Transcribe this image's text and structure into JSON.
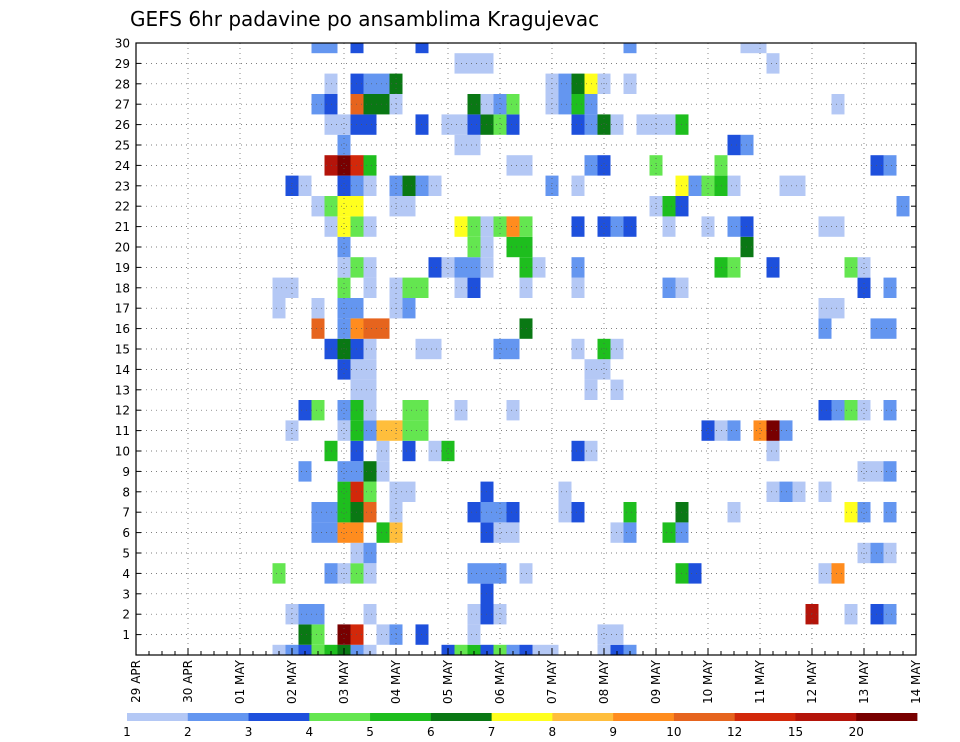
{
  "chart_data": {
    "type": "heatmap",
    "title": "GEFS 6hr padavine po ansamblima Kragujevac",
    "xlabel": "",
    "ylabel": "",
    "x_tick_labels": [
      "29 APR",
      "30 APR",
      "01 MAY",
      "02 MAY",
      "03 MAY",
      "04 MAY",
      "05 MAY",
      "06 MAY",
      "07 MAY",
      "08 MAY",
      "09 MAY",
      "10 MAY",
      "11 MAY",
      "12 MAY",
      "13 MAY",
      "14 MAY"
    ],
    "y_tick_labels": [
      "1",
      "2",
      "3",
      "4",
      "5",
      "6",
      "7",
      "8",
      "9",
      "10",
      "11",
      "12",
      "13",
      "14",
      "15",
      "16",
      "17",
      "18",
      "19",
      "20",
      "21",
      "22",
      "23",
      "24",
      "25",
      "26",
      "27",
      "28",
      "29",
      "30"
    ],
    "time_steps": 61,
    "ylim": [
      0,
      30
    ],
    "grid": true,
    "legend_position": "bottom",
    "colorbar": {
      "labels": [
        "1",
        "2",
        "3",
        "4",
        "5",
        "6",
        "7",
        "8",
        "9",
        "10",
        "12",
        "15",
        "20"
      ],
      "colors": [
        "#b4c8f5",
        "#6496f0",
        "#1e50dc",
        "#64e650",
        "#1ebe1e",
        "#0a7814",
        "#ffff1e",
        "#ffbe3c",
        "#ff8c1e",
        "#e6641e",
        "#d2280a",
        "#b4140a",
        "#780000"
      ]
    },
    "cells": [
      [
        0,
        11,
        0
      ],
      [
        0,
        12,
        1
      ],
      [
        0,
        13,
        2
      ],
      [
        0,
        14,
        3
      ],
      [
        0,
        15,
        4
      ],
      [
        0,
        16,
        5
      ],
      [
        0,
        17,
        1
      ],
      [
        0,
        18,
        0
      ],
      [
        0,
        24,
        2
      ],
      [
        0,
        25,
        3
      ],
      [
        0,
        26,
        4
      ],
      [
        0,
        27,
        2
      ],
      [
        0,
        28,
        3
      ],
      [
        0,
        29,
        1
      ],
      [
        0,
        30,
        2
      ],
      [
        0,
        31,
        0
      ],
      [
        0,
        32,
        0
      ],
      [
        0,
        36,
        0
      ],
      [
        0,
        37,
        2
      ],
      [
        0,
        38,
        1
      ],
      [
        1,
        13,
        5
      ],
      [
        1,
        14,
        3
      ],
      [
        1,
        16,
        12
      ],
      [
        1,
        17,
        10
      ],
      [
        1,
        19,
        0
      ],
      [
        1,
        20,
        1
      ],
      [
        1,
        22,
        2
      ],
      [
        1,
        26,
        0
      ],
      [
        1,
        36,
        0
      ],
      [
        1,
        37,
        0
      ],
      [
        2,
        12,
        0
      ],
      [
        2,
        13,
        1
      ],
      [
        2,
        14,
        1
      ],
      [
        2,
        18,
        0
      ],
      [
        2,
        26,
        0
      ],
      [
        2,
        27,
        2
      ],
      [
        2,
        28,
        0
      ],
      [
        2,
        52,
        11
      ],
      [
        2,
        55,
        0
      ],
      [
        2,
        57,
        2
      ],
      [
        2,
        58,
        1
      ],
      [
        3,
        27,
        2
      ],
      [
        4,
        11,
        3
      ],
      [
        4,
        15,
        1
      ],
      [
        4,
        16,
        0
      ],
      [
        4,
        17,
        3
      ],
      [
        4,
        18,
        0
      ],
      [
        4,
        26,
        1
      ],
      [
        4,
        27,
        1
      ],
      [
        4,
        28,
        1
      ],
      [
        4,
        30,
        0
      ],
      [
        4,
        42,
        4
      ],
      [
        4,
        43,
        2
      ],
      [
        4,
        53,
        0
      ],
      [
        4,
        54,
        8
      ],
      [
        5,
        17,
        0
      ],
      [
        5,
        18,
        1
      ],
      [
        5,
        56,
        0
      ],
      [
        5,
        57,
        1
      ],
      [
        5,
        58,
        0
      ],
      [
        6,
        14,
        1
      ],
      [
        6,
        15,
        1
      ],
      [
        6,
        16,
        8
      ],
      [
        6,
        17,
        8
      ],
      [
        6,
        19,
        4
      ],
      [
        6,
        20,
        7
      ],
      [
        6,
        27,
        2
      ],
      [
        6,
        28,
        0
      ],
      [
        6,
        29,
        0
      ],
      [
        6,
        37,
        0
      ],
      [
        6,
        38,
        1
      ],
      [
        6,
        41,
        4
      ],
      [
        6,
        42,
        1
      ],
      [
        7,
        14,
        1
      ],
      [
        7,
        15,
        1
      ],
      [
        7,
        16,
        4
      ],
      [
        7,
        17,
        5
      ],
      [
        7,
        18,
        9
      ],
      [
        7,
        20,
        0
      ],
      [
        7,
        26,
        2
      ],
      [
        7,
        27,
        1
      ],
      [
        7,
        28,
        1
      ],
      [
        7,
        29,
        2
      ],
      [
        7,
        33,
        0
      ],
      [
        7,
        34,
        2
      ],
      [
        7,
        38,
        4
      ],
      [
        7,
        42,
        5
      ],
      [
        7,
        46,
        0
      ],
      [
        7,
        55,
        6
      ],
      [
        7,
        56,
        1
      ],
      [
        7,
        58,
        1
      ],
      [
        8,
        16,
        4
      ],
      [
        8,
        17,
        10
      ],
      [
        8,
        18,
        3
      ],
      [
        8,
        20,
        0
      ],
      [
        8,
        21,
        0
      ],
      [
        8,
        27,
        2
      ],
      [
        8,
        33,
        0
      ],
      [
        8,
        49,
        0
      ],
      [
        8,
        50,
        1
      ],
      [
        8,
        51,
        0
      ],
      [
        8,
        53,
        0
      ],
      [
        9,
        13,
        1
      ],
      [
        9,
        16,
        1
      ],
      [
        9,
        17,
        1
      ],
      [
        9,
        18,
        5
      ],
      [
        9,
        19,
        0
      ],
      [
        9,
        56,
        0
      ],
      [
        9,
        57,
        0
      ],
      [
        9,
        58,
        1
      ],
      [
        10,
        15,
        4
      ],
      [
        10,
        17,
        2
      ],
      [
        10,
        19,
        0
      ],
      [
        10,
        21,
        2
      ],
      [
        10,
        23,
        0
      ],
      [
        10,
        24,
        4
      ],
      [
        10,
        34,
        2
      ],
      [
        10,
        35,
        0
      ],
      [
        10,
        49,
        0
      ],
      [
        11,
        12,
        0
      ],
      [
        11,
        16,
        0
      ],
      [
        11,
        17,
        4
      ],
      [
        11,
        18,
        1
      ],
      [
        11,
        19,
        7
      ],
      [
        11,
        20,
        7
      ],
      [
        11,
        21,
        3
      ],
      [
        11,
        22,
        3
      ],
      [
        11,
        44,
        2
      ],
      [
        11,
        45,
        0
      ],
      [
        11,
        46,
        1
      ],
      [
        11,
        48,
        8
      ],
      [
        11,
        49,
        12
      ],
      [
        11,
        50,
        1
      ],
      [
        12,
        13,
        2
      ],
      [
        12,
        14,
        3
      ],
      [
        12,
        16,
        1
      ],
      [
        12,
        17,
        4
      ],
      [
        12,
        18,
        0
      ],
      [
        12,
        21,
        3
      ],
      [
        12,
        22,
        3
      ],
      [
        12,
        25,
        0
      ],
      [
        12,
        29,
        0
      ],
      [
        12,
        53,
        2
      ],
      [
        12,
        54,
        1
      ],
      [
        12,
        55,
        3
      ],
      [
        12,
        56,
        0
      ],
      [
        12,
        58,
        1
      ],
      [
        13,
        17,
        0
      ],
      [
        13,
        18,
        0
      ],
      [
        13,
        35,
        0
      ],
      [
        13,
        37,
        0
      ],
      [
        14,
        16,
        2
      ],
      [
        14,
        17,
        0
      ],
      [
        14,
        18,
        0
      ],
      [
        14,
        35,
        0
      ],
      [
        14,
        36,
        0
      ],
      [
        15,
        15,
        2
      ],
      [
        15,
        16,
        5
      ],
      [
        15,
        17,
        2
      ],
      [
        15,
        18,
        0
      ],
      [
        15,
        22,
        0
      ],
      [
        15,
        23,
        0
      ],
      [
        15,
        28,
        1
      ],
      [
        15,
        29,
        1
      ],
      [
        15,
        34,
        0
      ],
      [
        15,
        36,
        4
      ],
      [
        15,
        37,
        0
      ],
      [
        16,
        14,
        9
      ],
      [
        16,
        16,
        1
      ],
      [
        16,
        17,
        8
      ],
      [
        16,
        18,
        9
      ],
      [
        16,
        19,
        9
      ],
      [
        16,
        30,
        5
      ],
      [
        16,
        53,
        1
      ],
      [
        16,
        57,
        1
      ],
      [
        16,
        58,
        1
      ],
      [
        17,
        11,
        0
      ],
      [
        17,
        14,
        0
      ],
      [
        17,
        16,
        1
      ],
      [
        17,
        17,
        1
      ],
      [
        17,
        20,
        0
      ],
      [
        17,
        21,
        1
      ],
      [
        17,
        53,
        0
      ],
      [
        17,
        54,
        0
      ],
      [
        18,
        11,
        0
      ],
      [
        18,
        12,
        0
      ],
      [
        18,
        16,
        3
      ],
      [
        18,
        18,
        0
      ],
      [
        18,
        20,
        0
      ],
      [
        18,
        21,
        3
      ],
      [
        18,
        22,
        3
      ],
      [
        18,
        25,
        0
      ],
      [
        18,
        26,
        2
      ],
      [
        18,
        30,
        0
      ],
      [
        18,
        34,
        0
      ],
      [
        18,
        41,
        1
      ],
      [
        18,
        42,
        0
      ],
      [
        18,
        56,
        2
      ],
      [
        18,
        58,
        1
      ],
      [
        19,
        16,
        0
      ],
      [
        19,
        17,
        3
      ],
      [
        19,
        18,
        0
      ],
      [
        19,
        23,
        2
      ],
      [
        19,
        24,
        0
      ],
      [
        19,
        25,
        1
      ],
      [
        19,
        26,
        1
      ],
      [
        19,
        27,
        0
      ],
      [
        19,
        30,
        4
      ],
      [
        19,
        31,
        0
      ],
      [
        19,
        34,
        1
      ],
      [
        19,
        45,
        4
      ],
      [
        19,
        46,
        3
      ],
      [
        19,
        49,
        2
      ],
      [
        19,
        55,
        3
      ],
      [
        19,
        56,
        0
      ],
      [
        20,
        16,
        1
      ],
      [
        20,
        26,
        3
      ],
      [
        20,
        27,
        0
      ],
      [
        20,
        29,
        4
      ],
      [
        20,
        30,
        4
      ],
      [
        20,
        47,
        5
      ],
      [
        21,
        15,
        0
      ],
      [
        21,
        16,
        6
      ],
      [
        21,
        17,
        3
      ],
      [
        21,
        18,
        0
      ],
      [
        21,
        25,
        6
      ],
      [
        21,
        26,
        3
      ],
      [
        21,
        27,
        0
      ],
      [
        21,
        28,
        3
      ],
      [
        21,
        29,
        8
      ],
      [
        21,
        30,
        3
      ],
      [
        21,
        34,
        2
      ],
      [
        21,
        36,
        2
      ],
      [
        21,
        37,
        1
      ],
      [
        21,
        38,
        2
      ],
      [
        21,
        41,
        0
      ],
      [
        21,
        44,
        0
      ],
      [
        21,
        46,
        1
      ],
      [
        21,
        47,
        2
      ],
      [
        21,
        53,
        0
      ],
      [
        21,
        54,
        0
      ],
      [
        22,
        14,
        0
      ],
      [
        22,
        15,
        3
      ],
      [
        22,
        16,
        6
      ],
      [
        22,
        17,
        6
      ],
      [
        22,
        20,
        0
      ],
      [
        22,
        21,
        0
      ],
      [
        22,
        40,
        0
      ],
      [
        22,
        41,
        4
      ],
      [
        22,
        42,
        2
      ],
      [
        22,
        59,
        1
      ],
      [
        23,
        12,
        2
      ],
      [
        23,
        13,
        0
      ],
      [
        23,
        16,
        2
      ],
      [
        23,
        17,
        1
      ],
      [
        23,
        18,
        0
      ],
      [
        23,
        20,
        1
      ],
      [
        23,
        21,
        5
      ],
      [
        23,
        22,
        1
      ],
      [
        23,
        23,
        0
      ],
      [
        23,
        32,
        1
      ],
      [
        23,
        34,
        0
      ],
      [
        23,
        42,
        6
      ],
      [
        23,
        43,
        1
      ],
      [
        23,
        44,
        3
      ],
      [
        23,
        45,
        4
      ],
      [
        23,
        46,
        0
      ],
      [
        23,
        50,
        0
      ],
      [
        23,
        51,
        0
      ],
      [
        24,
        15,
        11
      ],
      [
        24,
        16,
        12
      ],
      [
        24,
        17,
        10
      ],
      [
        24,
        18,
        4
      ],
      [
        24,
        29,
        0
      ],
      [
        24,
        30,
        0
      ],
      [
        24,
        35,
        1
      ],
      [
        24,
        36,
        2
      ],
      [
        24,
        40,
        3
      ],
      [
        24,
        45,
        3
      ],
      [
        24,
        57,
        2
      ],
      [
        24,
        58,
        1
      ],
      [
        25,
        16,
        1
      ],
      [
        25,
        25,
        0
      ],
      [
        25,
        26,
        0
      ],
      [
        25,
        46,
        2
      ],
      [
        25,
        47,
        1
      ],
      [
        26,
        15,
        0
      ],
      [
        26,
        16,
        0
      ],
      [
        26,
        17,
        2
      ],
      [
        26,
        18,
        2
      ],
      [
        26,
        22,
        2
      ],
      [
        26,
        24,
        0
      ],
      [
        26,
        25,
        0
      ],
      [
        26,
        26,
        2
      ],
      [
        26,
        27,
        5
      ],
      [
        26,
        28,
        3
      ],
      [
        26,
        29,
        2
      ],
      [
        26,
        34,
        2
      ],
      [
        26,
        35,
        1
      ],
      [
        26,
        36,
        5
      ],
      [
        26,
        37,
        0
      ],
      [
        26,
        39,
        0
      ],
      [
        26,
        40,
        0
      ],
      [
        26,
        41,
        0
      ],
      [
        26,
        42,
        4
      ],
      [
        27,
        14,
        1
      ],
      [
        27,
        15,
        2
      ],
      [
        27,
        17,
        9
      ],
      [
        27,
        18,
        5
      ],
      [
        27,
        19,
        5
      ],
      [
        27,
        20,
        0
      ],
      [
        27,
        26,
        5
      ],
      [
        27,
        27,
        0
      ],
      [
        27,
        28,
        1
      ],
      [
        27,
        29,
        3
      ],
      [
        27,
        32,
        0
      ],
      [
        27,
        33,
        1
      ],
      [
        27,
        34,
        4
      ],
      [
        27,
        35,
        1
      ],
      [
        27,
        54,
        0
      ],
      [
        28,
        15,
        0
      ],
      [
        28,
        17,
        2
      ],
      [
        28,
        18,
        1
      ],
      [
        28,
        19,
        1
      ],
      [
        28,
        20,
        5
      ],
      [
        28,
        32,
        0
      ],
      [
        28,
        33,
        1
      ],
      [
        28,
        34,
        5
      ],
      [
        28,
        35,
        6
      ],
      [
        28,
        36,
        0
      ],
      [
        28,
        38,
        0
      ],
      [
        29,
        25,
        0
      ],
      [
        29,
        26,
        0
      ],
      [
        29,
        27,
        0
      ],
      [
        29,
        49,
        0
      ],
      [
        30,
        14,
        1
      ],
      [
        30,
        15,
        1
      ],
      [
        30,
        17,
        2
      ],
      [
        30,
        22,
        2
      ],
      [
        30,
        38,
        1
      ],
      [
        30,
        47,
        0
      ],
      [
        30,
        48,
        0
      ]
    ]
  }
}
